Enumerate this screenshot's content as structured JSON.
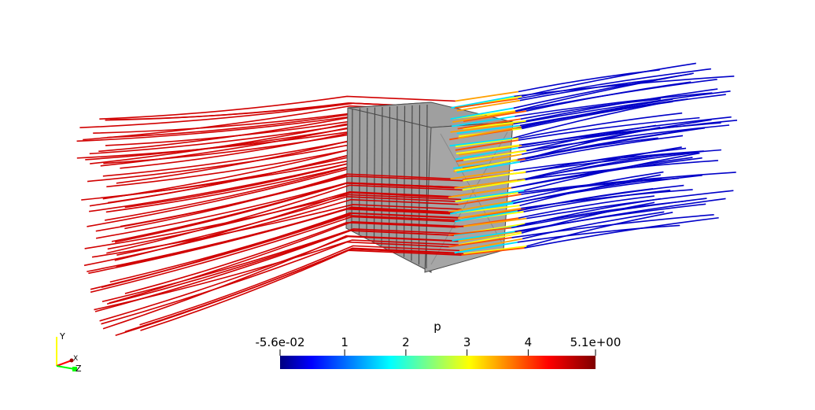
{
  "colorbar": {
    "title": "p",
    "min": -0.056,
    "max": 5.1,
    "ticks": [
      {
        "value": -0.056,
        "label": "-5.6e-02"
      },
      {
        "value": 1,
        "label": "1"
      },
      {
        "value": 2,
        "label": "2"
      },
      {
        "value": 3,
        "label": "3"
      },
      {
        "value": 4,
        "label": "4"
      },
      {
        "value": 5.1,
        "label": "5.1e+00"
      }
    ],
    "colormap": [
      "#00007f",
      "#0000ff",
      "#00ffff",
      "#ffff00",
      "#ff0000",
      "#7f0000"
    ]
  },
  "orientation_axes": {
    "y_label": "Y",
    "x_label": "X",
    "z_label": "Z",
    "y_color": "#ffff00",
    "x_color": "#ff0000",
    "z_color": "#00ff00"
  },
  "object": {
    "face_color": "#9f9f9f",
    "front_color": "#a6a6a6",
    "edge_color": "#4a4a4a"
  },
  "streamlines": {
    "upstream_color": "#d10000",
    "downstream_color": "#0000c8"
  }
}
